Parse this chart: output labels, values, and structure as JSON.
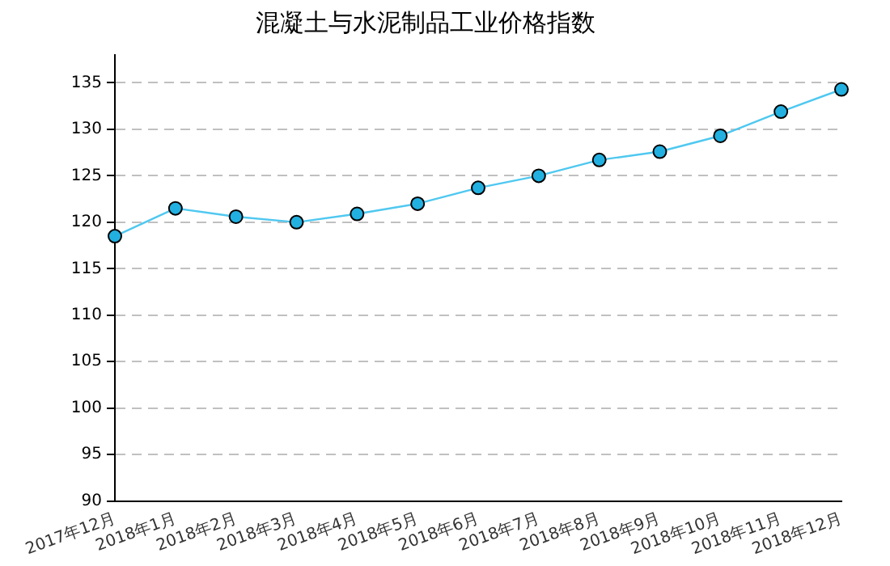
{
  "chart_data": {
    "type": "line",
    "title": "混凝土与水泥制品工业价格指数",
    "categories": [
      "2017年12月",
      "2018年1月",
      "2018年2月",
      "2018年3月",
      "2018年4月",
      "2018年5月",
      "2018年6月",
      "2018年7月",
      "2018年8月",
      "2018年9月",
      "2018年10月",
      "2018年11月",
      "2018年12月"
    ],
    "series": [
      {
        "color": "#4fc8f0",
        "values": [
          118.5,
          121.5,
          120.6,
          120.0,
          120.9,
          122.0,
          123.7,
          125.0,
          126.7,
          127.6,
          129.3,
          131.9,
          134.3
        ]
      }
    ],
    "ylim": [
      90,
      138
    ],
    "yticks": [
      90,
      95,
      100,
      105,
      110,
      115,
      120,
      125,
      130,
      135
    ],
    "grid": "y",
    "legend": false,
    "marker": "circle",
    "line_style": "solid"
  }
}
